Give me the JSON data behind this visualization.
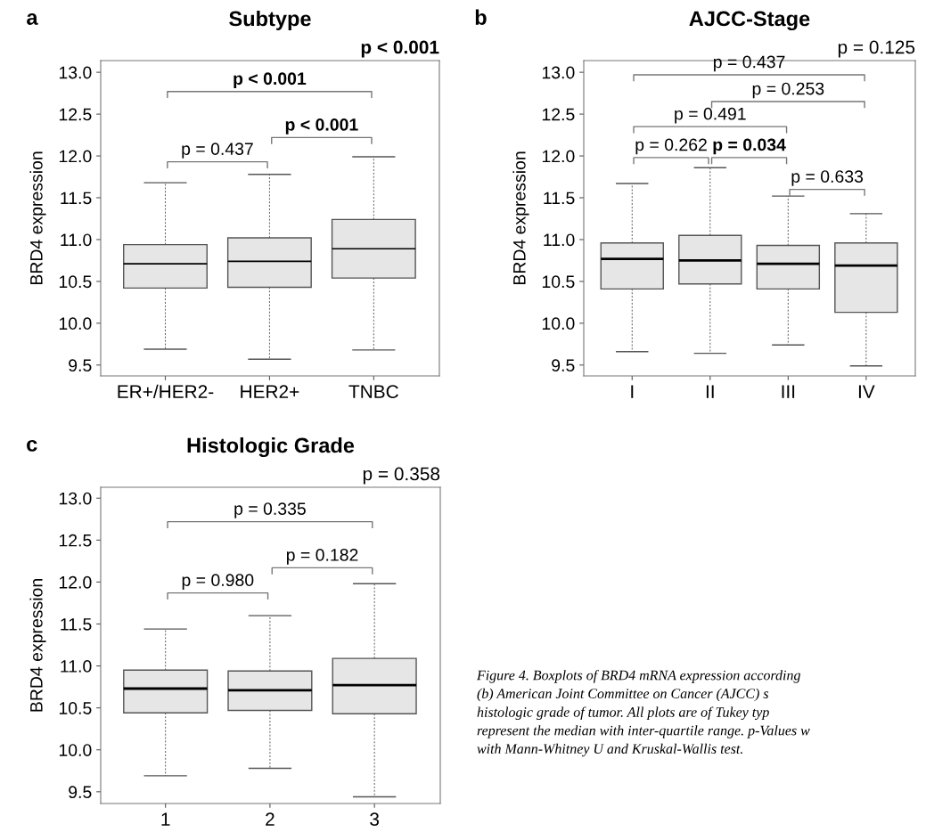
{
  "chart_data": [
    {
      "type": "box",
      "title": "Subtype",
      "ylabel": "BRD4 expression",
      "categories": [
        "ER+/HER2-",
        "HER2+",
        "TNBC"
      ],
      "color": "#e6e6e6",
      "ylim": [
        9.37,
        13.14
      ],
      "yticks": [
        {
          "value": 9.5,
          "label": "9.5"
        },
        {
          "value": 10.0,
          "label": "10.0"
        },
        {
          "value": 10.5,
          "label": "10.5"
        },
        {
          "value": 11.0,
          "label": "11.0"
        },
        {
          "value": 11.5,
          "label": "11.5"
        },
        {
          "value": 12.0,
          "label": "12.0"
        },
        {
          "value": 12.5,
          "label": "12.5"
        },
        {
          "value": 13.0,
          "label": "13.0"
        }
      ],
      "grid": false,
      "boxes": [
        {
          "low": 9.69,
          "q1": 10.42,
          "median": 10.71,
          "q3": 10.94,
          "high": 11.68
        },
        {
          "low": 9.57,
          "q1": 10.43,
          "median": 10.74,
          "q3": 11.02,
          "high": 11.78
        },
        {
          "low": 9.68,
          "q1": 10.54,
          "median": 10.89,
          "q3": 11.24,
          "high": 11.99
        }
      ],
      "annotations": [
        "a",
        "p = 0.437",
        "p < 0.001",
        "p < 0.001",
        "p < 0.001"
      ]
    },
    {
      "type": "box",
      "title": "AJCC-Stage",
      "ylabel": "BRD4 expression",
      "categories": [
        "I",
        "II",
        "III",
        "IV"
      ],
      "color": "#e6e6e6",
      "ylim": [
        9.37,
        13.14
      ],
      "yticks": [
        {
          "value": 9.5,
          "label": "9.5"
        },
        {
          "value": 10.0,
          "label": "10.0"
        },
        {
          "value": 10.5,
          "label": "10.5"
        },
        {
          "value": 11.0,
          "label": "11.0"
        },
        {
          "value": 11.5,
          "label": "11.5"
        },
        {
          "value": 12.0,
          "label": "12.0"
        },
        {
          "value": 12.5,
          "label": "12.5"
        },
        {
          "value": 13.0,
          "label": "13.0"
        }
      ],
      "grid": false,
      "boxes": [
        {
          "low": 9.66,
          "q1": 10.41,
          "median": 10.77,
          "q3": 10.96,
          "high": 11.67
        },
        {
          "low": 9.64,
          "q1": 10.47,
          "median": 10.75,
          "q3": 11.05,
          "high": 11.86
        },
        {
          "low": 9.74,
          "q1": 10.41,
          "median": 10.71,
          "q3": 10.93,
          "high": 11.52
        },
        {
          "low": 9.49,
          "q1": 10.13,
          "median": 10.69,
          "q3": 10.96,
          "high": 11.31
        }
      ],
      "annotations": [
        "b",
        "p = 0.262",
        "p = 0.034",
        "p = 0.633",
        "p = 0.491",
        "p = 0.253",
        "p = 0.437",
        "p = 0.125"
      ]
    },
    {
      "type": "box",
      "title": "Histologic Grade",
      "ylabel": "BRD4 expression",
      "categories": [
        "1",
        "2",
        "3"
      ],
      "color": "#e6e6e6",
      "ylim": [
        9.36,
        13.13
      ],
      "yticks": [
        {
          "value": 9.5,
          "label": "9.5"
        },
        {
          "value": 10.0,
          "label": "10.0"
        },
        {
          "value": 10.5,
          "label": "10.5"
        },
        {
          "value": 11.0,
          "label": "11.0"
        },
        {
          "value": 11.5,
          "label": "11.5"
        },
        {
          "value": 12.0,
          "label": "12.0"
        },
        {
          "value": 12.5,
          "label": "12.5"
        },
        {
          "value": 13.0,
          "label": "13.0"
        }
      ],
      "grid": false,
      "boxes": [
        {
          "low": 9.69,
          "q1": 10.44,
          "median": 10.73,
          "q3": 10.95,
          "high": 11.44
        },
        {
          "low": 9.78,
          "q1": 10.47,
          "median": 10.71,
          "q3": 10.94,
          "high": 11.6
        },
        {
          "low": 9.44,
          "q1": 10.43,
          "median": 10.77,
          "q3": 11.09,
          "high": 11.98
        }
      ],
      "annotations": [
        "c",
        "p = 0.980",
        "p = 0.182",
        "p = 0.335",
        "p = 0.358",
        "Figure 4. Boxplots of BRD4 mRNA expression according\n(b) American Joint Committee on Cancer (AJCC) s\nhistologic grade of tumor. All plots are of Tukey typ\nrepresent the median with inter-quartile range. p-Values w\nwith Mann-Whitney U and Kruskal-Wallis test."
      ]
    }
  ]
}
